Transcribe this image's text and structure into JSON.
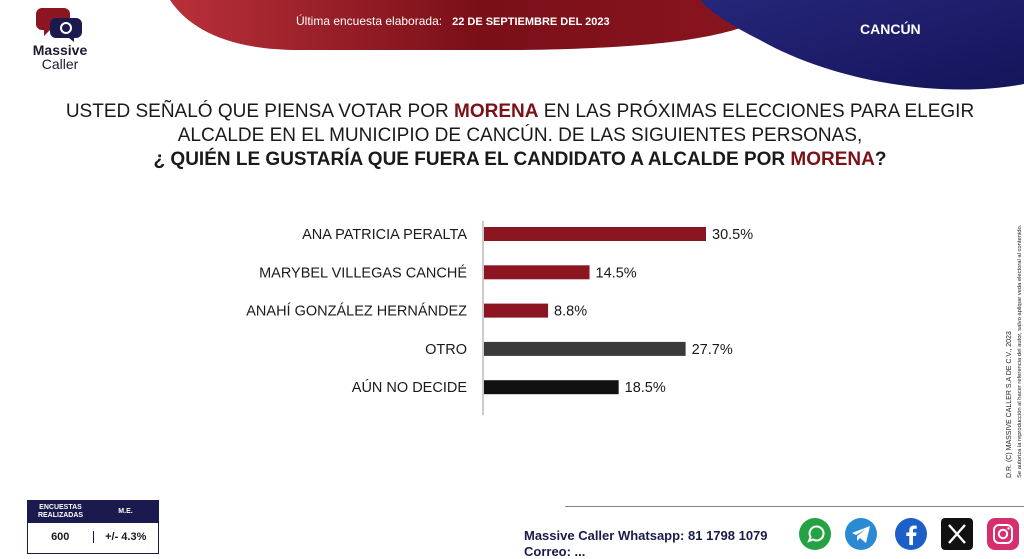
{
  "header": {
    "brand_line1": "Massive",
    "brand_line2": "Caller",
    "survey_label": "Última encuesta elaborada:",
    "survey_date": "22 DE SEPTIEMBRE DEL 2023",
    "city": "CANCÚN",
    "colors": {
      "red": "#8b1520",
      "navy": "#1a1a6e"
    }
  },
  "question": {
    "line1_a": "USTED SEÑALÓ QUE PIENSA VOTAR POR ",
    "line1_b": "MORENA",
    "line1_c": " EN LAS PRÓXIMAS ELECCIONES PARA ELEGIR",
    "line2": "ALCALDE EN EL MUNICIPIO DE CANCÚN. DE LAS SIGUIENTES PERSONAS,",
    "line3_a": "¿ QUIÉN LE GUSTARÍA QUE FUERA EL CANDIDATO A ALCALDE POR ",
    "line3_b": "MORENA",
    "line3_c": "?"
  },
  "chart_data": {
    "type": "bar",
    "orientation": "horizontal",
    "categories": [
      "ANA PATRICIA PERALTA",
      "MARYBEL VILLEGAS CANCHÉ",
      "ANAHÍ GONZÁLEZ HERNÁNDEZ",
      "OTRO",
      "AÚN NO DECIDE"
    ],
    "values": [
      30.5,
      14.5,
      8.8,
      27.7,
      18.5
    ],
    "labels": [
      "30.5%",
      "14.5%",
      "8.8%",
      "27.7%",
      "18.5%"
    ],
    "bar_colors": [
      "#8b1520",
      "#8b1520",
      "#8b1520",
      "#3a3a3a",
      "#111111"
    ],
    "title": "",
    "xlabel": "",
    "ylabel": "",
    "xlim": [
      0,
      35
    ],
    "grid": false
  },
  "side_note": {
    "line1": "D.R. (C) MASSIVE CALLER S.A DE C.V., 2023",
    "line2": "Se autoriza la reproducción al hacer referencia del autor, salvo aplique veda electoral al contenido."
  },
  "stats_box": {
    "head1": "ENCUESTAS REALIZADAS",
    "head2": "M.E.",
    "val1": "600",
    "val2": "+/- 4.3%"
  },
  "footer": {
    "whatsapp": "Massive Caller Whatsapp: 81 1798 1079",
    "email_partial": "Correo: ..."
  },
  "social_icons": [
    "whatsapp-icon",
    "telegram-icon",
    "facebook-icon",
    "x-icon",
    "instagram-icon"
  ]
}
